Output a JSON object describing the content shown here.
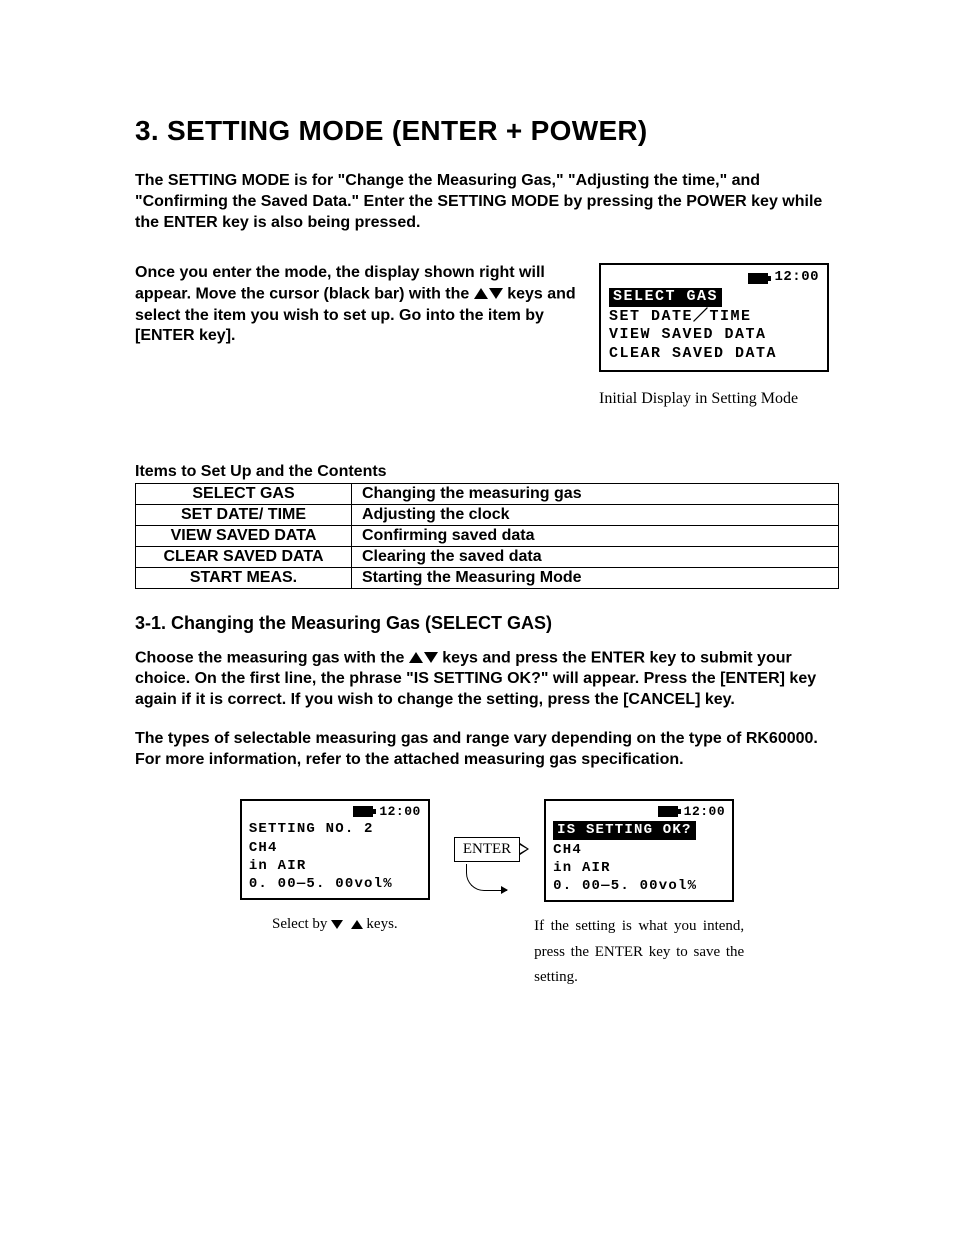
{
  "title": "3. SETTING MODE (ENTER + POWER)",
  "intro": "The SETTING MODE is for \"Change the Measuring Gas,\" \"Adjusting the time,\" and \"Confirming the Saved Data.\" Enter the SETTING MODE by pressing the POWER key while the ENTER key is also being pressed.",
  "para2_a": "Once you enter the mode, the display shown right will appear. Move the cursor (black bar) with the ",
  "para2_b": " keys and select the item you wish to set up. Go into the item by [ENTER key].",
  "lcd1": {
    "time": "12:00",
    "l1": "SELECT GAS",
    "l2": "SET DATE／TIME",
    "l3": "VIEW SAVED DATA",
    "l4": "CLEAR SAVED DATA"
  },
  "caption1": "Initial Display in Setting Mode",
  "table_heading": "Items to Set Up and the Contents",
  "table": {
    "rows": [
      [
        "SELECT GAS",
        "Changing the measuring gas"
      ],
      [
        "SET DATE/ TIME",
        "Adjusting the clock"
      ],
      [
        "VIEW SAVED DATA",
        "Confirming saved data"
      ],
      [
        "CLEAR SAVED DATA",
        "Clearing the saved data"
      ],
      [
        "START MEAS.",
        "Starting the Measuring Mode"
      ]
    ]
  },
  "sub1": "3-1. Changing the Measuring Gas (SELECT GAS)",
  "para3_a": "Choose the measuring gas with the ",
  "para3_b": " keys and press the ENTER key to submit your choice. On the first line, the phrase \"IS SETTING OK?\" will appear. Press the [ENTER] key again if it is correct. If you wish to change the setting, press the [CANCEL] key.",
  "para4": "The types of selectable measuring gas and range vary depending on the type of RK60000. For more information, refer to the attached measuring gas specification.",
  "lcd2": {
    "time": "12:00",
    "l1": "SETTING NO. 2",
    "l2": "CH4",
    "l3": "in AIR",
    "l4": "0. 00—5. 00vol%"
  },
  "flow_caption_left_a": "Select by ",
  "flow_caption_left_b": " keys.",
  "enter_label": "ENTER",
  "lcd3": {
    "time": "12:00",
    "l1": "IS SETTING OK?",
    "l2": "CH4",
    "l3": "in AIR",
    "l4": "0. 00—5. 00vol%"
  },
  "flow_caption_right": "If the setting is what you intend, press the ENTER key to save the setting."
}
